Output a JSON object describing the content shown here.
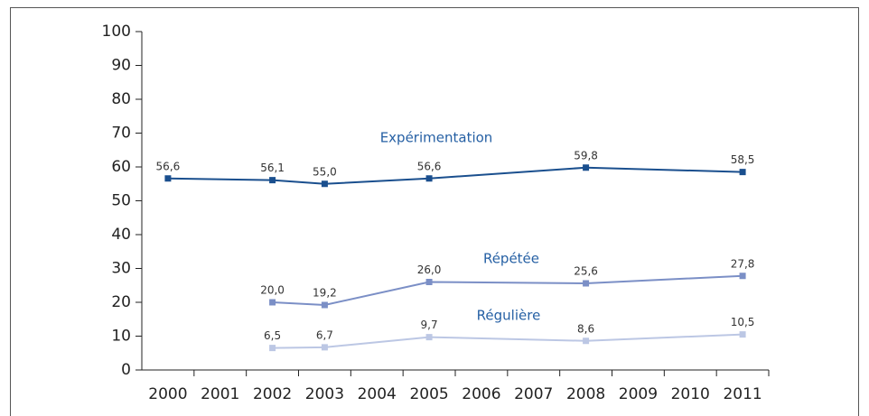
{
  "chart_data": {
    "type": "line",
    "xlim": [
      1999.5,
      2011.5
    ],
    "xticks": [
      2000,
      2001,
      2002,
      2003,
      2004,
      2005,
      2006,
      2007,
      2008,
      2009,
      2010,
      2011
    ],
    "ylim": [
      0,
      100
    ],
    "yticks": [
      0,
      10,
      20,
      30,
      40,
      50,
      60,
      70,
      80,
      90,
      100
    ],
    "grid": false,
    "series": [
      {
        "name": "Expérimentation",
        "color": "#1a4f8e",
        "x": [
          2000,
          2002,
          2003,
          2005,
          2008,
          2011
        ],
        "values": [
          56.6,
          56.1,
          55.0,
          56.6,
          59.8,
          58.5
        ],
        "value_labels": [
          "56,6",
          "56,1",
          "55,0",
          "56,6",
          "59,8",
          "58,5"
        ]
      },
      {
        "name": "Répétée",
        "color": "#7b8fc6",
        "x": [
          2002,
          2003,
          2005,
          2008,
          2011
        ],
        "values": [
          20.0,
          19.2,
          26.0,
          25.6,
          27.8
        ],
        "value_labels": [
          "20,0",
          "19,2",
          "26,0",
          "25,6",
          "27,8"
        ]
      },
      {
        "name": "Régulière",
        "color": "#bcc7e4",
        "x": [
          2002,
          2003,
          2005,
          2008,
          2011
        ],
        "values": [
          6.5,
          6.7,
          9.7,
          8.6,
          10.5
        ],
        "value_labels": [
          "6,5",
          "6,7",
          "9,7",
          "8,6",
          "10,5"
        ]
      }
    ]
  }
}
